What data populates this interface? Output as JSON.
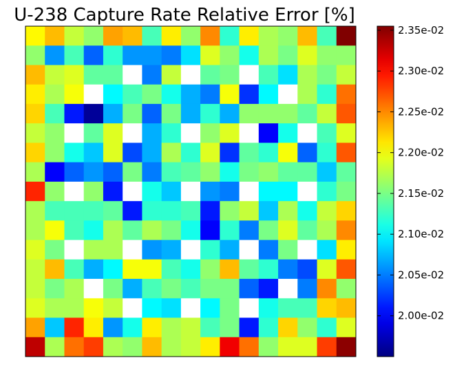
{
  "chart_data": {
    "type": "heatmap",
    "title": "U-238 Capture Rate Relative Error [%]",
    "xlabel": "",
    "ylabel": "",
    "colormap": "jet",
    "missing_value_color": "#ffffff",
    "colorbar": {
      "min": 0.0195,
      "max": 0.02355,
      "tick_values": [
        0.02,
        0.0205,
        0.021,
        0.0215,
        0.022,
        0.0225,
        0.023,
        0.0235
      ],
      "tick_labels": [
        "2.00e-02",
        "2.05e-02",
        "2.10e-02",
        "2.15e-02",
        "2.20e-02",
        "2.25e-02",
        "2.30e-02",
        "2.35e-02"
      ]
    },
    "grid": false,
    "n_rows": 17,
    "n_cols": 17,
    "values": [
      [
        0.02205,
        0.0223,
        0.0218,
        0.0216,
        0.0224,
        0.0223,
        0.0213,
        0.0221,
        0.0216,
        0.0225,
        0.0212,
        0.0221,
        0.0217,
        0.0216,
        0.0223,
        0.0213,
        0.02355
      ],
      [
        0.0216,
        0.0206,
        0.0213,
        0.0204,
        0.0212,
        0.0206,
        0.0206,
        0.0205,
        0.0209,
        0.0219,
        0.0216,
        0.0211,
        0.0217,
        0.0215,
        0.0219,
        0.0216,
        0.0216
      ],
      [
        0.0223,
        0.0218,
        0.0219,
        0.0214,
        0.0214,
        null,
        0.0205,
        0.0218,
        null,
        0.0214,
        0.0215,
        null,
        0.0213,
        0.0209,
        0.0217,
        0.0215,
        0.0218
      ],
      [
        0.0221,
        0.0217,
        0.022,
        null,
        0.021,
        0.0213,
        0.0215,
        0.0211,
        0.0207,
        0.0205,
        0.022,
        0.0202,
        0.021,
        null,
        0.0217,
        0.0212,
        0.0226
      ],
      [
        0.0222,
        0.0213,
        0.0201,
        0.0196,
        0.0207,
        0.0215,
        0.0204,
        0.0215,
        0.0207,
        0.0212,
        0.0207,
        0.0216,
        0.0216,
        0.0216,
        0.0214,
        0.0218,
        0.0227
      ],
      [
        0.0218,
        0.0216,
        null,
        0.0214,
        0.0219,
        null,
        0.0207,
        0.0212,
        null,
        0.0216,
        0.0219,
        null,
        0.02,
        0.0211,
        null,
        0.0213,
        0.0219
      ],
      [
        0.0222,
        0.0216,
        0.0211,
        0.0208,
        0.0219,
        0.0203,
        0.0207,
        0.0217,
        0.0212,
        0.0219,
        0.0202,
        0.0214,
        0.0212,
        0.022,
        0.0204,
        0.0212,
        0.0227
      ],
      [
        0.0217,
        0.02,
        0.0204,
        0.0206,
        0.0204,
        0.0215,
        0.0205,
        0.0213,
        0.0214,
        0.0216,
        0.0211,
        0.0215,
        0.0216,
        0.0214,
        0.0214,
        0.0208,
        0.0214
      ],
      [
        0.0229,
        0.0216,
        null,
        0.0216,
        0.0201,
        null,
        0.0211,
        0.0208,
        null,
        0.0206,
        0.0205,
        null,
        0.021,
        0.021,
        null,
        0.0212,
        0.0215
      ],
      [
        0.0217,
        0.0213,
        0.0213,
        0.0213,
        0.0214,
        0.0201,
        0.0212,
        0.0212,
        0.0213,
        0.0201,
        0.0216,
        0.0218,
        0.0208,
        0.0217,
        0.0211,
        0.0218,
        0.0222
      ],
      [
        0.0217,
        0.022,
        0.0213,
        0.0211,
        0.0217,
        0.0214,
        0.0217,
        0.0215,
        0.0211,
        0.02,
        0.0212,
        0.0205,
        0.0215,
        0.0219,
        0.0214,
        0.0217,
        0.0225
      ],
      [
        0.0219,
        0.0215,
        null,
        0.0217,
        0.0217,
        null,
        0.0206,
        0.0207,
        null,
        0.0212,
        0.0207,
        null,
        0.0205,
        0.0215,
        null,
        0.0209,
        0.0221
      ],
      [
        0.0218,
        0.0223,
        0.0213,
        0.0207,
        0.021,
        0.022,
        0.022,
        0.0213,
        0.0211,
        0.0216,
        0.0223,
        0.0214,
        0.0212,
        0.0205,
        0.0203,
        0.0219,
        0.0227
      ],
      [
        0.0218,
        0.0215,
        0.0217,
        null,
        0.0215,
        0.0207,
        0.0213,
        0.0215,
        0.0213,
        0.0215,
        0.0215,
        0.0204,
        0.0201,
        null,
        0.0205,
        0.0225,
        0.0216
      ],
      [
        0.0219,
        0.0217,
        0.0217,
        0.022,
        0.0218,
        null,
        0.021,
        0.0209,
        null,
        0.021,
        0.0215,
        null,
        0.0211,
        0.0213,
        0.0213,
        0.0222,
        0.0223
      ],
      [
        0.0224,
        0.0208,
        0.0229,
        0.0221,
        0.0206,
        0.0211,
        0.0221,
        0.0217,
        0.0218,
        0.0213,
        0.0215,
        0.0201,
        0.0212,
        0.0222,
        0.0216,
        0.0212,
        0.0219
      ],
      [
        0.0233,
        0.0217,
        0.0226,
        0.0228,
        0.0217,
        0.0216,
        0.0223,
        0.0217,
        0.0218,
        0.0221,
        0.0231,
        0.0226,
        0.0216,
        0.0219,
        0.0219,
        0.0228,
        0.0235
      ]
    ]
  }
}
